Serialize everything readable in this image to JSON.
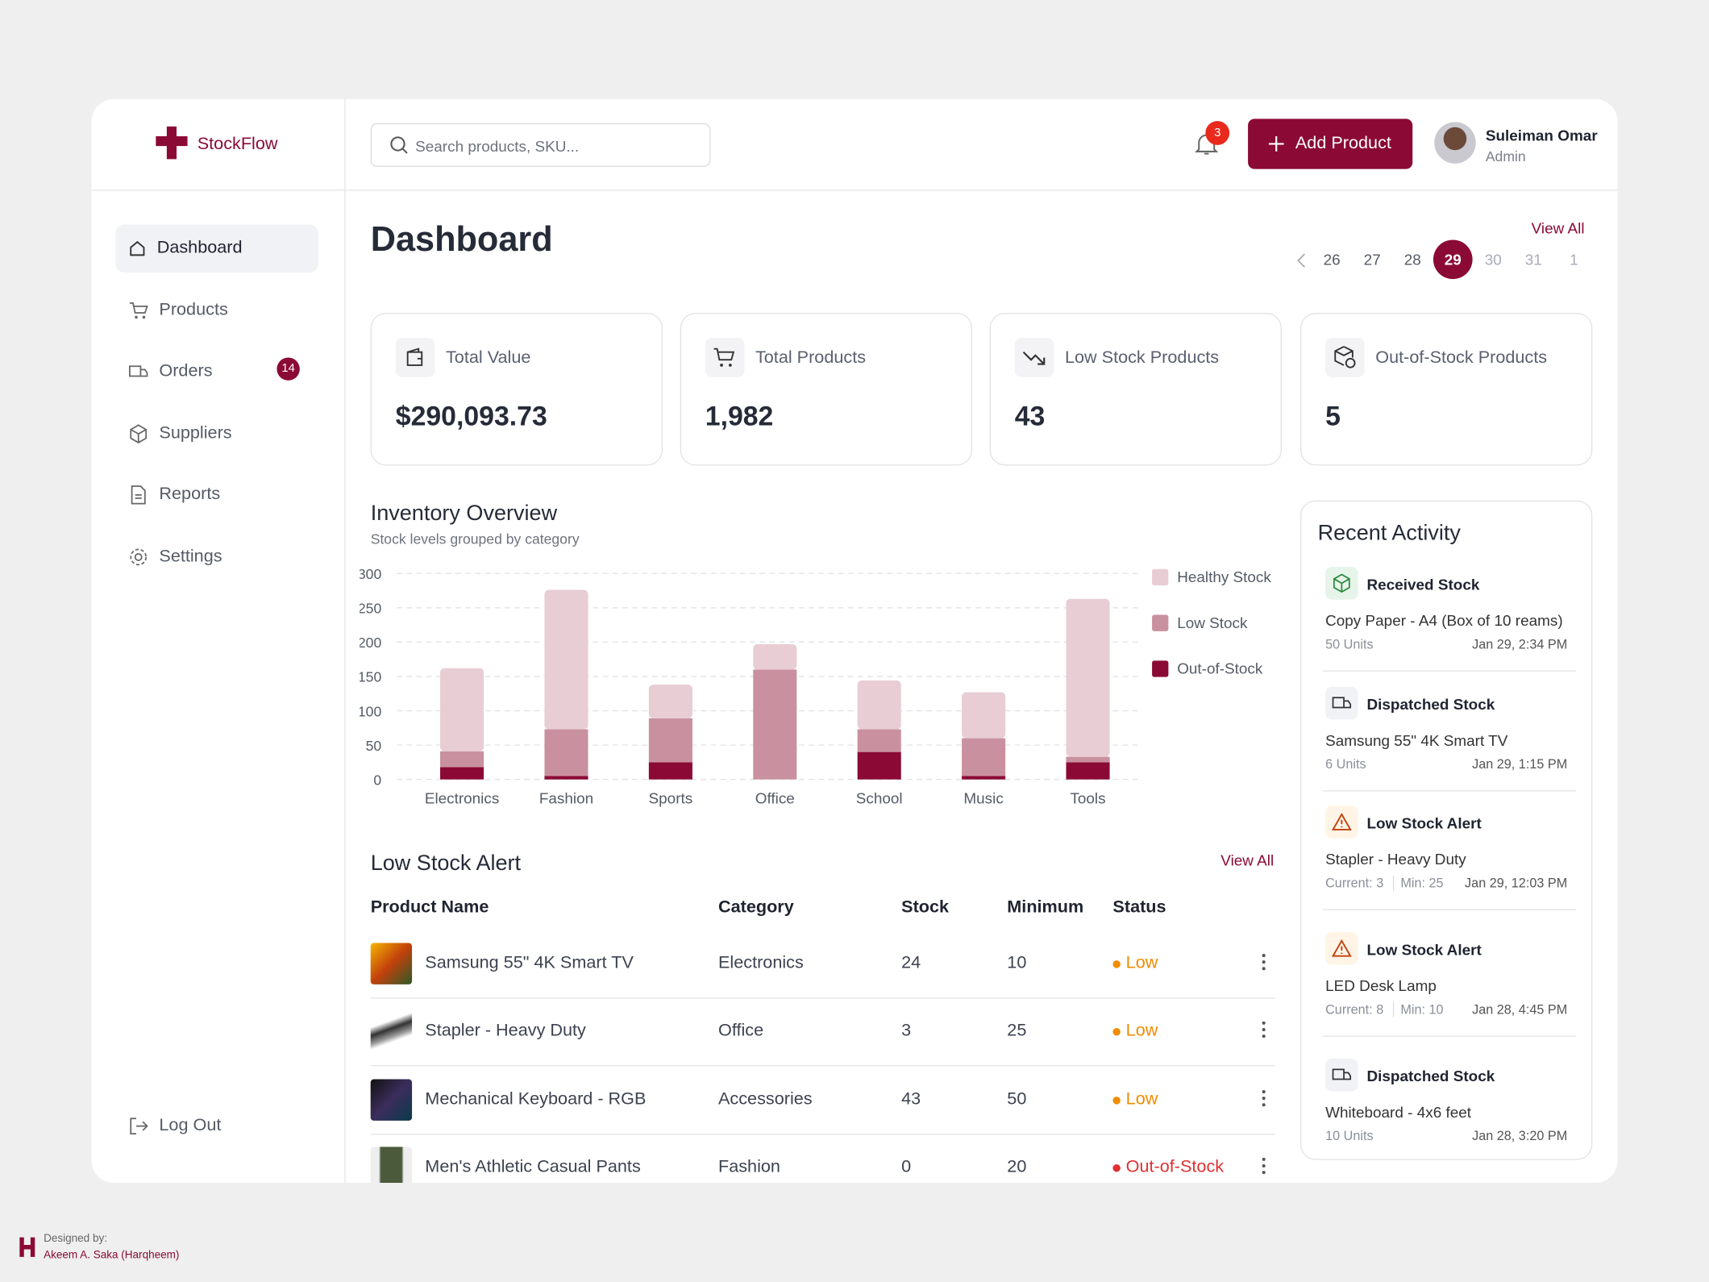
{
  "brand": "StockFlow",
  "search_placeholder": "Search products, SKU...",
  "notifications": 3,
  "add_button": "Add Product",
  "user": {
    "name": "Suleiman Omar",
    "role": "Admin"
  },
  "nav": [
    "Dashboard",
    "Products",
    "Orders",
    "Suppliers",
    "Reports",
    "Settings"
  ],
  "orders_badge": 14,
  "logout": "Log Out",
  "page_title": "Dashboard",
  "view_all": "View All",
  "dates": [
    26,
    27,
    28,
    29,
    30,
    31,
    1
  ],
  "stats": [
    {
      "label": "Total Value",
      "value": "$290,093.73"
    },
    {
      "label": "Total Products",
      "value": "1,982"
    },
    {
      "label": "Low Stock Products",
      "value": "43"
    },
    {
      "label": "Out-of-Stock Products",
      "value": "5"
    }
  ],
  "chart_data": {
    "type": "stacked_bar",
    "title": "Inventory Overview",
    "subtitle": "Stock levels grouped by category",
    "categories": [
      "Electronics",
      "Fashion",
      "Sports",
      "Office",
      "School",
      "Music",
      "Tools"
    ],
    "series": [
      {
        "name": "Out-of-Stock",
        "color": "#8b0a35",
        "values": [
          18,
          5,
          25,
          0,
          40,
          5,
          25
        ]
      },
      {
        "name": "Low Stock",
        "color": "#c9919f",
        "values": [
          23,
          68,
          64,
          160,
          33,
          55,
          8
        ]
      },
      {
        "name": "Healthy Stock",
        "color": "#e8cdd5",
        "values": [
          121,
          203,
          49,
          37,
          71,
          67,
          230
        ]
      }
    ],
    "ylim": [
      0,
      300
    ],
    "yticks": [
      0,
      50,
      100,
      150,
      200,
      250,
      300
    ],
    "grid": true,
    "legend": "right"
  },
  "low_stock": {
    "title": "Low Stock Alert",
    "view_all": "View All",
    "columns": [
      "Product Name",
      "Category",
      "Stock",
      "Minimum",
      "Status"
    ],
    "rows": [
      {
        "product": "Samsung 55\" 4K Smart TV",
        "category": "Electronics",
        "stock": 24,
        "minimum": 10,
        "status": "Low",
        "status_color": "#f08c00"
      },
      {
        "product": "Stapler - Heavy Duty",
        "category": "Office",
        "stock": 3,
        "minimum": 25,
        "status": "Low",
        "status_color": "#f08c00"
      },
      {
        "product": "Mechanical Keyboard - RGB",
        "category": "Accessories",
        "stock": 43,
        "minimum": 50,
        "status": "Low",
        "status_color": "#f08c00"
      },
      {
        "product": "Men's Athletic Casual Pants",
        "category": "Fashion",
        "stock": 0,
        "minimum": 20,
        "status": "Out-of-Stock",
        "status_color": "#e03131"
      }
    ]
  },
  "recent_activity": {
    "title": "Recent Activity",
    "items": [
      {
        "type": "Received Stock",
        "item": "Copy Paper - A4 (Box of 10 reams)",
        "details": [
          "50 Units"
        ],
        "time": "Jan 29, 2:34 PM"
      },
      {
        "type": "Dispatched Stock",
        "item": "Samsung 55\" 4K Smart TV",
        "details": [
          "6 Units"
        ],
        "time": "Jan 29, 1:15 PM"
      },
      {
        "type": "Low Stock Alert",
        "item": "Stapler - Heavy Duty",
        "details": [
          "Current: 3",
          "Min: 25"
        ],
        "time": "Jan 29, 12:03 PM"
      },
      {
        "type": "Low Stock Alert",
        "item": "LED Desk Lamp",
        "details": [
          "Current: 8",
          "Min: 10"
        ],
        "time": "Jan 28, 4:45 PM"
      },
      {
        "type": "Dispatched Stock",
        "item": "Whiteboard - 4x6 feet",
        "details": [
          "10 Units"
        ],
        "time": "Jan 28, 3:20 PM"
      }
    ]
  },
  "credit": {
    "label": "Designed by:",
    "name": "Akeem A. Saka (Harqheem)"
  }
}
